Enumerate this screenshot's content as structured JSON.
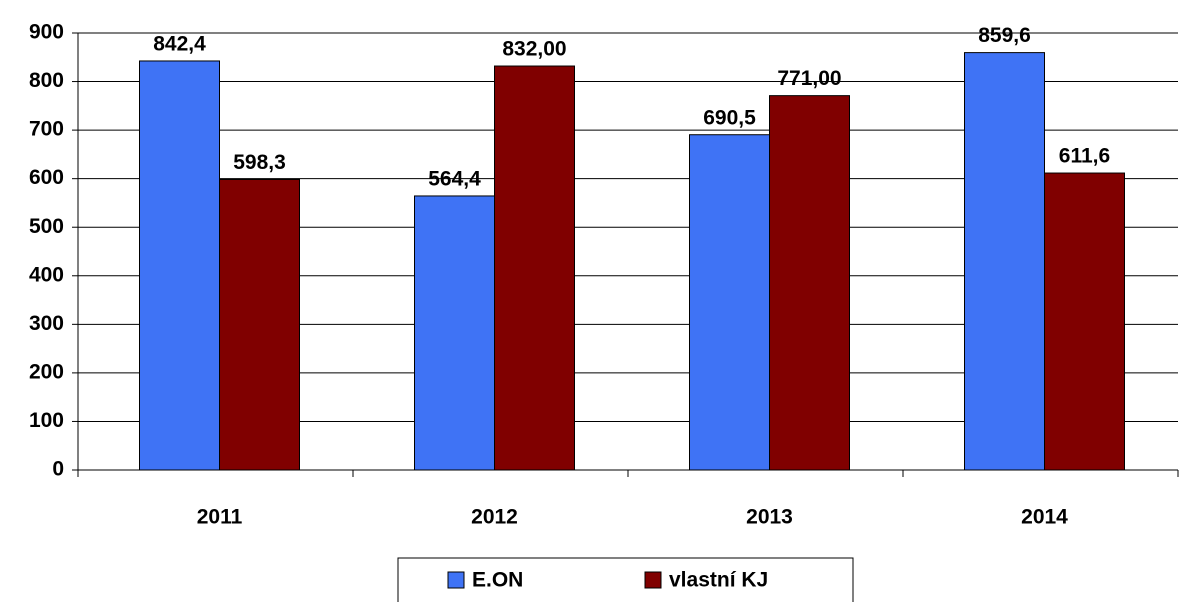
{
  "chart_data": {
    "type": "bar",
    "categories": [
      "2011",
      "2012",
      "2013",
      "2014"
    ],
    "series": [
      {
        "name": "E.ON",
        "color": "#3f73f5",
        "values": [
          842.4,
          564.4,
          690.5,
          859.6
        ],
        "value_labels": [
          "842,4",
          "564,4",
          "690,5",
          "859,6"
        ]
      },
      {
        "name": "vlastní KJ",
        "color": "#800000",
        "values": [
          598.3,
          832,
          771,
          611.6
        ],
        "value_labels": [
          "598,3",
          "832,00",
          "771,00",
          "611,6"
        ]
      }
    ],
    "ylim": [
      0,
      900
    ],
    "yticks": [
      0,
      100,
      200,
      300,
      400,
      500,
      600,
      700,
      800,
      900
    ],
    "grid": true,
    "legend": "bottom"
  }
}
